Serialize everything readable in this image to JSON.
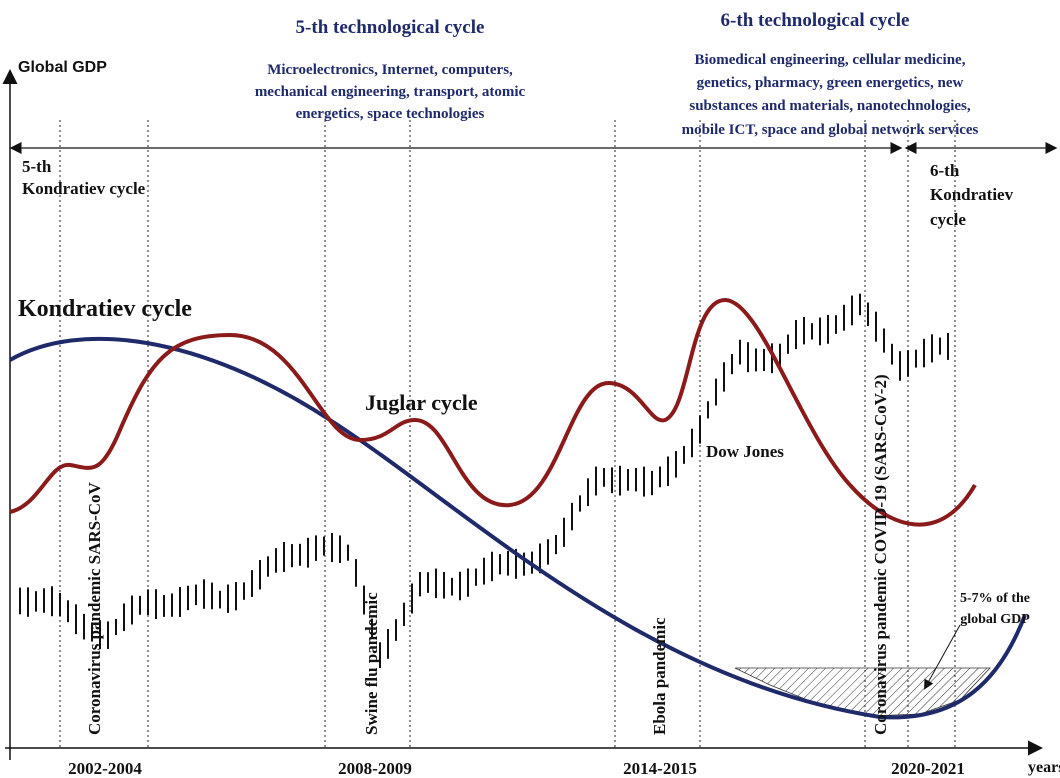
{
  "header": {
    "tech5_title": "5-th technological cycle",
    "tech5_lines": [
      "Microelectronics, Internet, computers,",
      "mechanical engineering, transport, atomic",
      "energetics, space technologies"
    ],
    "tech6_title": "6-th technological cycle",
    "tech6_lines": [
      "Biomedical engineering, cellular medicine,",
      "genetics, pharmacy, green energetics, new",
      "substances and materials, nanotechnologies,",
      "mobile ICT, space and global network services"
    ]
  },
  "axes": {
    "y_label": "Global GDP",
    "x_label": "years",
    "x_labels": [
      "2002-2004",
      "2008-2009",
      "2014-2015",
      "2020-2021"
    ]
  },
  "kondratiev5": [
    "5-th",
    "Kondratiev cycle"
  ],
  "kondratiev6": [
    "6-th",
    "Kondratiev",
    "cycle"
  ],
  "curves": {
    "kondratiev": "Kondratiev cycle",
    "juglar": "Juglar cycle",
    "dow": "Dow Jones"
  },
  "events": [
    "Coronavirus pandemic SARS-CoV",
    "Swine flu pandemic",
    "Ebola pandemic",
    "Coronavirus pandemic COVID-19 (SARS-CoV-2)"
  ],
  "annotation": [
    "5-7% of the",
    "global GDP"
  ]
}
